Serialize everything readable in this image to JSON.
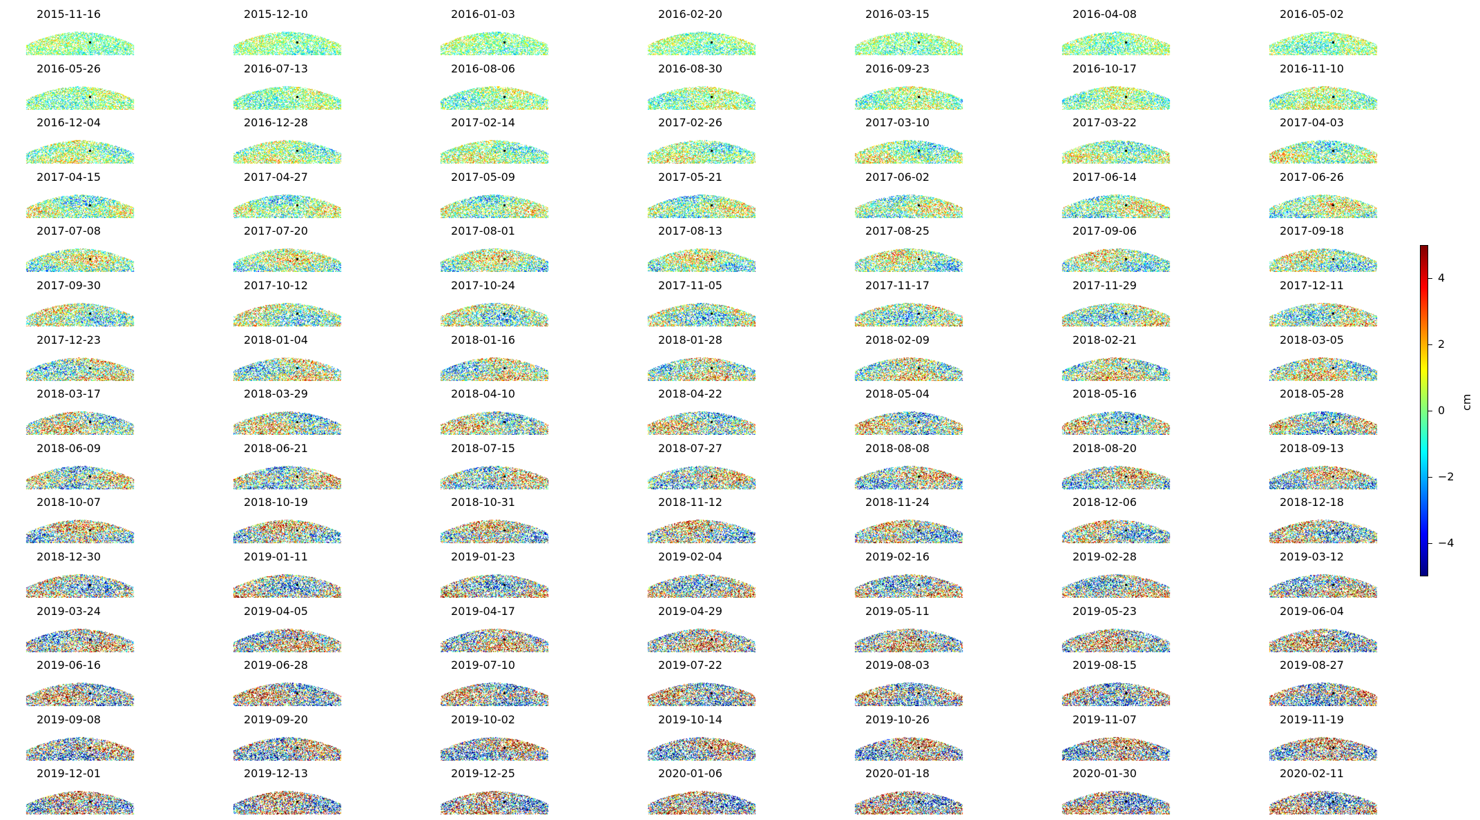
{
  "chart_data": {
    "type": "heatmap",
    "layout": {
      "rows": 15,
      "columns": 7
    },
    "panel_titles": [
      "2015-11-16",
      "2015-12-10",
      "2016-01-03",
      "2016-02-20",
      "2016-03-15",
      "2016-04-08",
      "2016-05-02",
      "2016-05-26",
      "2016-07-13",
      "2016-08-06",
      "2016-08-30",
      "2016-09-23",
      "2016-10-17",
      "2016-11-10",
      "2016-12-04",
      "2016-12-28",
      "2017-02-14",
      "2017-02-26",
      "2017-03-10",
      "2017-03-22",
      "2017-04-03",
      "2017-04-15",
      "2017-04-27",
      "2017-05-09",
      "2017-05-21",
      "2017-06-02",
      "2017-06-14",
      "2017-06-26",
      "2017-07-08",
      "2017-07-20",
      "2017-08-01",
      "2017-08-13",
      "2017-08-25",
      "2017-09-06",
      "2017-09-18",
      "2017-09-30",
      "2017-10-12",
      "2017-10-24",
      "2017-11-05",
      "2017-11-17",
      "2017-11-29",
      "2017-12-11",
      "2017-12-23",
      "2018-01-04",
      "2018-01-16",
      "2018-01-28",
      "2018-02-09",
      "2018-02-21",
      "2018-03-05",
      "2018-03-17",
      "2018-03-29",
      "2018-04-10",
      "2018-04-22",
      "2018-05-04",
      "2018-05-16",
      "2018-05-28",
      "2018-06-09",
      "2018-06-21",
      "2018-07-15",
      "2018-07-27",
      "2018-08-08",
      "2018-08-20",
      "2018-09-13",
      "2018-10-07",
      "2018-10-19",
      "2018-10-31",
      "2018-11-12",
      "2018-11-24",
      "2018-12-06",
      "2018-12-18",
      "2018-12-30",
      "2019-01-11",
      "2019-01-23",
      "2019-02-04",
      "2019-02-16",
      "2019-02-28",
      "2019-03-12",
      "2019-03-24",
      "2019-04-05",
      "2019-04-17",
      "2019-04-29",
      "2019-05-11",
      "2019-05-23",
      "2019-06-04",
      "2019-06-16",
      "2019-06-28",
      "2019-07-10",
      "2019-07-22",
      "2019-08-03",
      "2019-08-15",
      "2019-08-27",
      "2019-09-08",
      "2019-09-20",
      "2019-10-02",
      "2019-10-14",
      "2019-10-26",
      "2019-11-07",
      "2019-11-19",
      "2019-12-01",
      "2019-12-13",
      "2019-12-25",
      "2020-01-06",
      "2020-01-18",
      "2020-01-30",
      "2020-02-11"
    ],
    "colorbar": {
      "label": "cm",
      "range": [
        -5,
        5
      ],
      "ticks": [
        4,
        2,
        0,
        -2,
        -4
      ],
      "tick_labels": [
        "4",
        "2",
        "0",
        "−2",
        "−4"
      ],
      "colormap": "jet"
    },
    "axes_visible": false
  }
}
